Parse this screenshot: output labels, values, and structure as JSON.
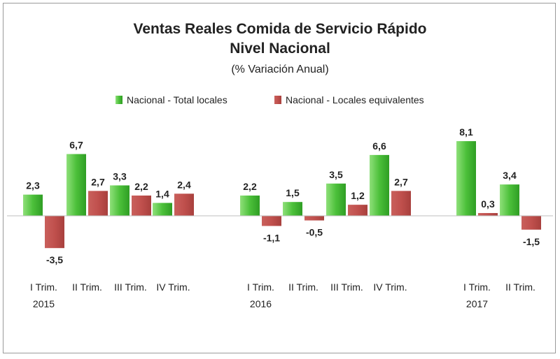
{
  "chart_data": {
    "type": "bar",
    "title": "Ventas Reales Comida de Servicio Rápido",
    "title_line2": "Nivel Nacional",
    "subtitle": "(% Variación Anual)",
    "legend_position": "top",
    "grid": false,
    "ylim": [
      -5,
      10
    ],
    "categories": [
      "I Trim.",
      "II Trim.",
      "III Trim.",
      "IV Trim.",
      "I Trim.",
      "II Trim.",
      "III Trim.",
      "IV Trim.",
      "I Trim.",
      "II Trim."
    ],
    "years": [
      {
        "label": "2015",
        "under_index": 0
      },
      {
        "label": "2016",
        "under_index": 4
      },
      {
        "label": "2017",
        "under_index": 8
      }
    ],
    "series": [
      {
        "name": "Nacional - Total locales",
        "color": "#5ec94a",
        "values": [
          2.3,
          6.7,
          3.3,
          1.4,
          2.2,
          1.5,
          3.5,
          6.6,
          8.1,
          3.4
        ],
        "labels": [
          "2,3",
          "6,7",
          "3,3",
          "1,4",
          "2,2",
          "1,5",
          "3,5",
          "6,6",
          "8,1",
          "3,4"
        ]
      },
      {
        "name": "Nacional - Locales equivalentes",
        "color": "#c0504d",
        "values": [
          -3.5,
          2.7,
          2.2,
          2.4,
          -1.1,
          -0.5,
          1.2,
          2.7,
          0.3,
          -1.5
        ],
        "labels": [
          "-3,5",
          "2,7",
          "2,2",
          "2,4",
          "-1,1",
          "-0,5",
          "1,2",
          "2,7",
          "0,3",
          "-1,5"
        ]
      }
    ]
  }
}
